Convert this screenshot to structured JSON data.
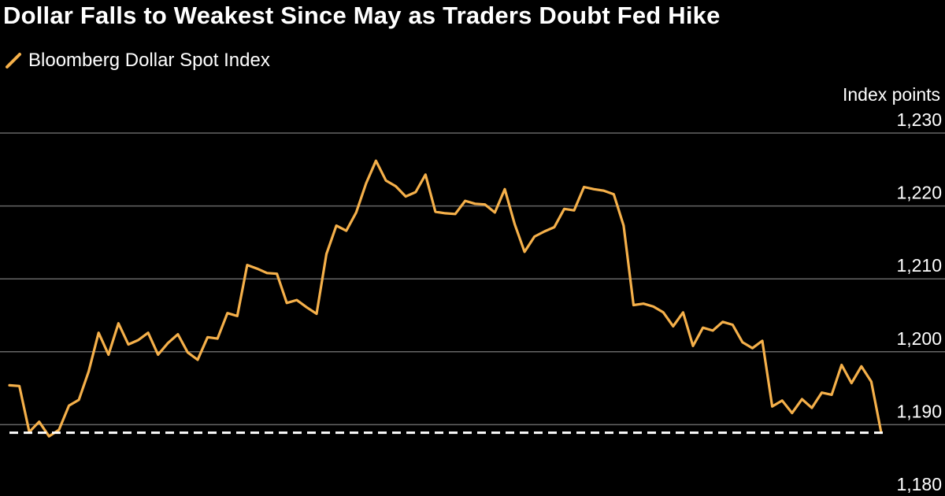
{
  "title": "Dollar Falls to Weakest Since May as Traders Doubt Fed Hike",
  "legend": [
    {
      "label": "Bloomberg Dollar Spot Index",
      "color": "#f5b04a"
    }
  ],
  "unit_label": "Index points",
  "colors": {
    "background": "#000000",
    "line": "#f5b04a",
    "grid": "#666666",
    "reference_line": "#ffffff"
  },
  "chart_data": {
    "type": "line",
    "title": "Dollar Falls to Weakest Since May as Traders Doubt Fed Hike",
    "ylabel": "Index points",
    "ylim": [
      1180,
      1230
    ],
    "yticks": [
      1180,
      1190,
      1200,
      1210,
      1220,
      1230
    ],
    "ytick_labels": [
      "1,180",
      "1,190",
      "1,200",
      "1,210",
      "1,220",
      "1,230"
    ],
    "grid": true,
    "legend_position": "top-left",
    "reference_line": {
      "y": 1188.9,
      "style": "dashed"
    },
    "series": [
      {
        "name": "Bloomberg Dollar Spot Index",
        "values": [
          1195.4,
          1195.3,
          1189.0,
          1190.4,
          1188.4,
          1189.3,
          1192.6,
          1193.4,
          1197.3,
          1202.6,
          1199.6,
          1203.9,
          1201.0,
          1201.6,
          1202.6,
          1199.6,
          1201.2,
          1202.4,
          1199.9,
          1198.9,
          1202.0,
          1201.8,
          1205.3,
          1204.9,
          1211.9,
          1211.4,
          1210.8,
          1210.7,
          1206.7,
          1207.1,
          1206.1,
          1205.2,
          1213.4,
          1217.3,
          1216.6,
          1219.1,
          1223.1,
          1226.2,
          1223.5,
          1222.7,
          1221.3,
          1221.9,
          1224.3,
          1219.2,
          1219.0,
          1218.9,
          1220.7,
          1220.3,
          1220.2,
          1219.1,
          1222.3,
          1217.5,
          1213.7,
          1215.8,
          1216.5,
          1217.1,
          1219.6,
          1219.4,
          1222.6,
          1222.3,
          1222.1,
          1221.6,
          1217.3,
          1206.4,
          1206.6,
          1206.2,
          1205.4,
          1203.5,
          1205.4,
          1200.8,
          1203.3,
          1202.9,
          1204.1,
          1203.7,
          1201.3,
          1200.5,
          1201.5,
          1192.5,
          1193.3,
          1191.6,
          1193.5,
          1192.3,
          1194.4,
          1194.1,
          1198.2,
          1195.7,
          1198.0,
          1195.9,
          1188.9
        ]
      }
    ]
  }
}
